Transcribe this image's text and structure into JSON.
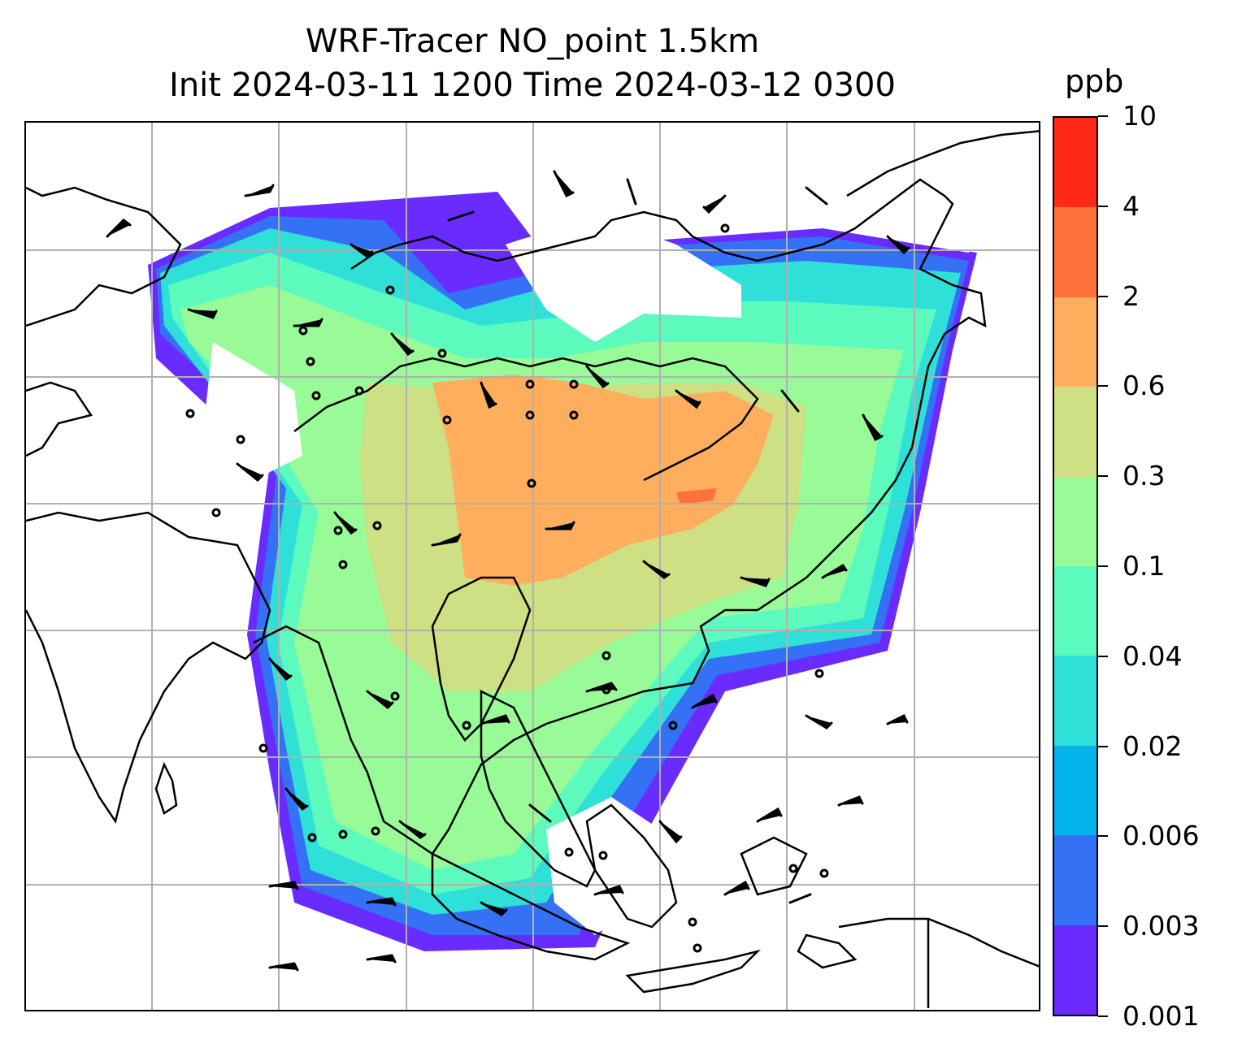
{
  "title": {
    "line1": "WRF-Tracer NO_point 1.5km",
    "line2": "Init 2024-03-11 1200 Time 2024-03-12 0300"
  },
  "map": {
    "projection": "lat-lon",
    "gridlines": true,
    "coastlines": true,
    "wind_barbs": true,
    "field": "NO tracer concentration"
  },
  "colorbar": {
    "unit": "ppb",
    "ticks": [
      "0.001",
      "0.003",
      "0.006",
      "0.02",
      "0.04",
      "0.1",
      "0.3",
      "0.6",
      "2",
      "4",
      "10"
    ],
    "colors": [
      "#6a2bff",
      "#3471f5",
      "#04b3ea",
      "#2fe0d8",
      "#5dfabe",
      "#98fb98",
      "#cde083",
      "#ffae5e",
      "#ff713c",
      "#ff2a16"
    ]
  }
}
